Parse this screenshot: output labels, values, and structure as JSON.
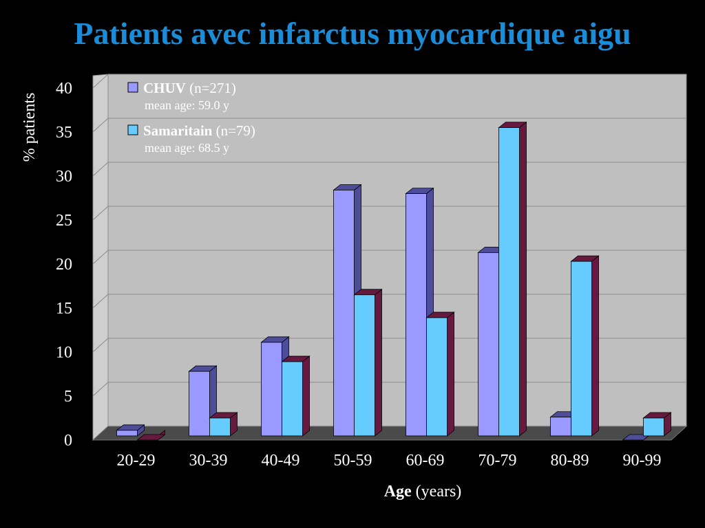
{
  "chart_data": {
    "type": "bar",
    "title": "Patients avec infarctus myocardique aigu",
    "xlabel": {
      "bold": "Age",
      "rest": " (years)"
    },
    "ylabel": "% patients",
    "categories": [
      "20-29",
      "30-39",
      "40-49",
      "50-59",
      "60-69",
      "70-79",
      "80-89",
      "90-99"
    ],
    "ylim": [
      0,
      40
    ],
    "yticks": [
      "0",
      "5",
      "10",
      "15",
      "20",
      "25",
      "30",
      "35",
      "40"
    ],
    "grid": true,
    "legend_position": "top-left",
    "series": [
      {
        "name": "CHUV",
        "name_suffix": " (n=271)",
        "note": "mean age: 59.0 y",
        "color": "#9999ff",
        "side_color": "#4d4d99",
        "values": [
          1.1,
          7.8,
          11.1,
          28.4,
          28.0,
          21.3,
          2.6,
          0
        ]
      },
      {
        "name": "Samaritain",
        "name_suffix": " (n=79)",
        "note": "mean age: 68.5 y",
        "color": "#66ccff",
        "side_color": "#661a3f",
        "values": [
          0,
          2.5,
          8.9,
          16.5,
          13.9,
          35.5,
          20.3,
          2.5
        ]
      }
    ]
  }
}
